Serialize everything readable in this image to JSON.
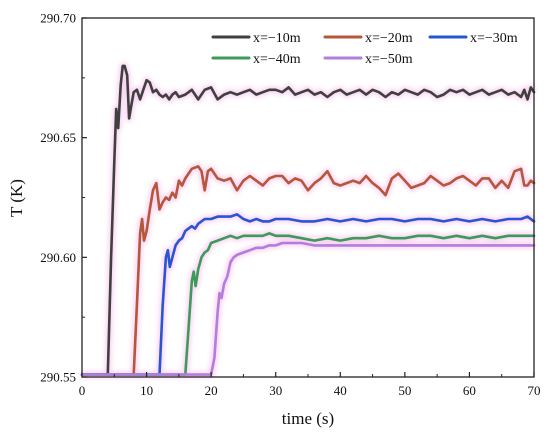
{
  "chart_data": {
    "type": "line",
    "xlabel": "time (s)",
    "ylabel": "T (K)",
    "xlim": [
      0,
      70
    ],
    "ylim": [
      290.55,
      290.7
    ],
    "xticks": [
      "0",
      "10",
      "20",
      "30",
      "40",
      "50",
      "60",
      "70"
    ],
    "yticks": [
      "290.55",
      "290.60",
      "290.65",
      "290.70"
    ],
    "grid": false,
    "legend_position": "top-right",
    "series": [
      {
        "name": "x=−10m",
        "color": "#404040",
        "x": [
          0,
          3.5,
          4.0,
          4.5,
          5.0,
          5.3,
          5.6,
          6.0,
          6.3,
          6.6,
          7.0,
          7.3,
          7.6,
          8.0,
          8.5,
          9.0,
          9.5,
          10.0,
          10.5,
          11.0,
          11.5,
          12.0,
          12.5,
          13.0,
          13.5,
          14.0,
          14.5,
          15.0,
          16.0,
          17.0,
          18.0,
          19.0,
          20.0,
          21.0,
          22.0,
          23.0,
          24.0,
          25.0,
          26.0,
          27.0,
          28.0,
          29.0,
          30.0,
          31.0,
          32.0,
          33.0,
          34.0,
          35.0,
          36.0,
          37.0,
          38.0,
          39.0,
          40.0,
          41.0,
          42.0,
          43.0,
          44.0,
          45.0,
          46.0,
          47.0,
          48.0,
          49.0,
          50.0,
          51.0,
          52.0,
          53.0,
          54.0,
          55.0,
          56.0,
          57.0,
          58.0,
          59.0,
          60.0,
          61.0,
          62.0,
          63.0,
          64.0,
          65.0,
          66.0,
          67.0,
          68.0,
          68.5,
          69.0,
          69.5,
          70.0
        ],
        "y": [
          290.551,
          290.551,
          290.551,
          290.6,
          290.64,
          290.662,
          290.654,
          290.672,
          290.68,
          290.68,
          290.676,
          290.658,
          290.663,
          290.669,
          290.67,
          290.666,
          290.67,
          290.674,
          290.673,
          290.669,
          290.67,
          290.668,
          290.667,
          290.668,
          290.666,
          290.668,
          290.669,
          290.667,
          290.668,
          290.67,
          290.666,
          290.67,
          290.671,
          290.666,
          290.668,
          290.669,
          290.668,
          290.669,
          290.67,
          290.668,
          290.669,
          290.67,
          290.67,
          290.669,
          290.671,
          290.668,
          290.669,
          290.67,
          290.668,
          290.669,
          290.667,
          290.669,
          290.67,
          290.668,
          290.669,
          290.67,
          290.668,
          290.67,
          290.669,
          290.667,
          290.669,
          290.668,
          290.67,
          290.669,
          290.668,
          290.67,
          290.669,
          290.667,
          290.668,
          290.67,
          290.669,
          290.67,
          290.668,
          290.669,
          290.67,
          290.668,
          290.669,
          290.67,
          290.668,
          290.669,
          290.667,
          290.67,
          290.666,
          290.671,
          290.669
        ]
      },
      {
        "name": "x=−20m",
        "color": "#b5573a",
        "x": [
          0,
          8.0,
          8.5,
          9.0,
          9.3,
          9.6,
          10.0,
          10.5,
          11.0,
          11.5,
          12.0,
          12.5,
          13.0,
          13.5,
          14.0,
          14.5,
          15.0,
          15.5,
          16.0,
          17.0,
          18.0,
          18.5,
          19.0,
          19.5,
          20.0,
          21.0,
          22.0,
          23.0,
          24.0,
          25.0,
          26.0,
          27.0,
          28.0,
          29.0,
          30.0,
          31.0,
          32.0,
          33.0,
          34.0,
          35.0,
          36.0,
          37.0,
          38.0,
          39.0,
          40.0,
          41.0,
          42.0,
          43.0,
          44.0,
          45.0,
          46.0,
          47.0,
          48.0,
          49.0,
          50.0,
          51.0,
          52.0,
          53.0,
          54.0,
          55.0,
          56.0,
          57.0,
          58.0,
          59.0,
          60.0,
          61.0,
          62.0,
          63.0,
          64.0,
          65.0,
          66.0,
          67.0,
          68.0,
          68.5,
          69.0,
          69.5,
          70.0
        ],
        "y": [
          290.551,
          290.551,
          290.58,
          290.61,
          290.616,
          290.607,
          290.611,
          290.62,
          290.628,
          290.631,
          290.62,
          290.623,
          290.625,
          290.624,
          290.627,
          290.625,
          290.632,
          290.63,
          290.633,
          290.637,
          290.638,
          290.636,
          290.628,
          290.636,
          290.637,
          290.633,
          290.632,
          290.633,
          290.628,
          290.632,
          290.634,
          290.632,
          290.63,
          290.633,
          290.634,
          290.634,
          290.631,
          290.633,
          290.632,
          290.628,
          290.631,
          290.633,
          290.636,
          290.631,
          290.63,
          290.631,
          290.632,
          290.631,
          290.634,
          290.631,
          290.629,
          290.626,
          290.633,
          290.635,
          290.632,
          290.629,
          290.63,
          290.631,
          290.634,
          290.632,
          290.63,
          290.631,
          290.633,
          290.634,
          290.632,
          290.63,
          290.633,
          290.633,
          290.629,
          290.632,
          290.629,
          290.636,
          290.637,
          290.63,
          290.63,
          290.632,
          290.631
        ]
      },
      {
        "name": "x=−30m",
        "color": "#2a55d0",
        "x": [
          0,
          12.0,
          12.5,
          13.0,
          13.3,
          13.6,
          14.0,
          14.5,
          15.0,
          15.5,
          16.0,
          16.5,
          17.0,
          17.5,
          18.0,
          19.0,
          20.0,
          21.0,
          22.0,
          23.0,
          24.0,
          25.0,
          26.0,
          27.0,
          28.0,
          29.0,
          30.0,
          32.0,
          34.0,
          36.0,
          38.0,
          40.0,
          42.0,
          44.0,
          46.0,
          48.0,
          50.0,
          52.0,
          54.0,
          56.0,
          58.0,
          60.0,
          62.0,
          64.0,
          66.0,
          68.0,
          69.0,
          70.0
        ],
        "y": [
          290.551,
          290.551,
          290.58,
          290.6,
          290.603,
          290.596,
          290.6,
          290.605,
          290.607,
          290.608,
          290.611,
          290.612,
          290.613,
          290.612,
          290.614,
          290.616,
          290.616,
          290.617,
          290.617,
          290.617,
          290.618,
          290.616,
          290.615,
          290.616,
          290.615,
          290.615,
          290.616,
          290.616,
          290.615,
          290.615,
          290.616,
          290.615,
          290.616,
          290.615,
          290.616,
          290.616,
          290.615,
          290.616,
          290.616,
          290.615,
          290.616,
          290.615,
          290.616,
          290.615,
          290.616,
          290.616,
          290.617,
          290.615
        ]
      },
      {
        "name": "x=−40m",
        "color": "#3d9a5a",
        "x": [
          0,
          16.0,
          16.5,
          17.0,
          17.3,
          17.6,
          18.0,
          18.5,
          19.0,
          19.5,
          20.0,
          21.0,
          22.0,
          23.0,
          24.0,
          25.0,
          26.0,
          27.0,
          28.0,
          29.0,
          30.0,
          32.0,
          34.0,
          36.0,
          38.0,
          40.0,
          42.0,
          44.0,
          46.0,
          48.0,
          50.0,
          52.0,
          54.0,
          56.0,
          58.0,
          60.0,
          62.0,
          64.0,
          66.0,
          68.0,
          70.0
        ],
        "y": [
          290.551,
          290.551,
          290.57,
          290.59,
          290.594,
          290.588,
          290.595,
          290.6,
          290.602,
          290.603,
          290.606,
          290.607,
          290.608,
          290.609,
          290.608,
          290.609,
          290.609,
          290.609,
          290.609,
          290.61,
          290.609,
          290.609,
          290.608,
          290.607,
          290.608,
          290.607,
          290.608,
          290.608,
          290.609,
          290.608,
          290.608,
          290.609,
          290.609,
          290.608,
          290.609,
          290.608,
          290.609,
          290.608,
          290.609,
          290.609,
          290.609
        ]
      },
      {
        "name": "x=−50m",
        "color": "#b07fdc",
        "x": [
          0,
          20.0,
          20.5,
          21.0,
          21.3,
          21.6,
          22.0,
          22.5,
          23.0,
          23.5,
          24.0,
          25.0,
          26.0,
          27.0,
          28.0,
          29.0,
          30.0,
          31.0,
          32.0,
          34.0,
          36.0,
          38.0,
          40.0,
          42.0,
          44.0,
          46.0,
          48.0,
          50.0,
          52.0,
          54.0,
          56.0,
          58.0,
          60.0,
          62.0,
          64.0,
          66.0,
          68.0,
          70.0
        ],
        "y": [
          290.551,
          290.551,
          290.558,
          290.577,
          290.585,
          290.583,
          290.589,
          290.592,
          290.598,
          290.6,
          290.601,
          290.602,
          290.603,
          290.604,
          290.604,
          290.605,
          290.605,
          290.606,
          290.606,
          290.606,
          290.605,
          290.605,
          290.605,
          290.605,
          290.605,
          290.605,
          290.605,
          290.605,
          290.605,
          290.605,
          290.605,
          290.605,
          290.605,
          290.605,
          290.605,
          290.605,
          290.605,
          290.605
        ]
      }
    ]
  }
}
